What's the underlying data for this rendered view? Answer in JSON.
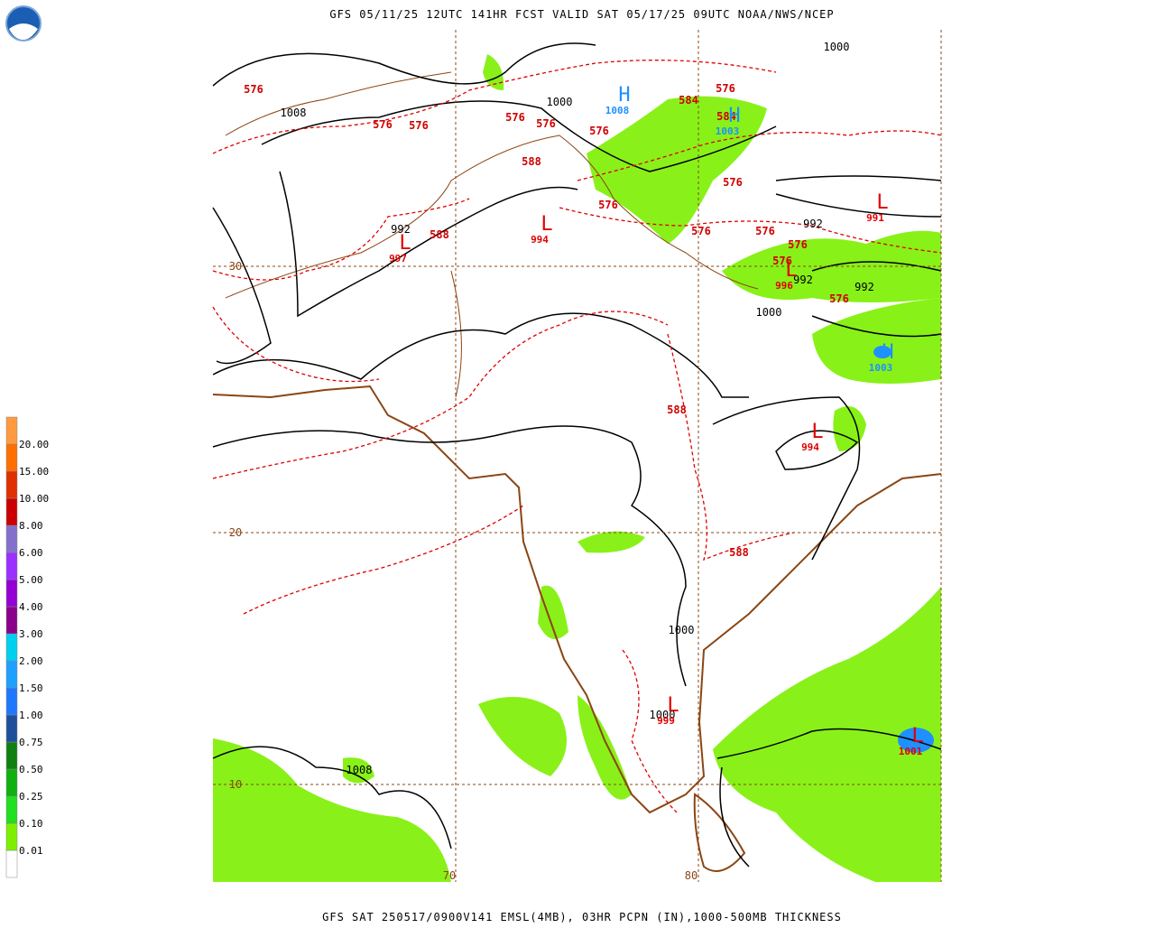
{
  "header": {
    "title": "GFS 05/11/25 12UTC 141HR FCST VALID SAT 05/17/25 09UTC NOAA/NWS/NCEP"
  },
  "footer": {
    "text": "GFS SAT 250517/0900V141 EMSL(4MB), 03HR PCPN (IN),1000-500MB THICKNESS"
  },
  "legend": {
    "labels": [
      "20.00",
      "15.00",
      "10.00",
      "8.00",
      "6.00",
      "5.00",
      "4.00",
      "3.00",
      "2.00",
      "1.50",
      "1.00",
      "0.75",
      "0.50",
      "0.25",
      "0.10",
      "0.01"
    ]
  },
  "grid_labels": {
    "latitude": [
      "30",
      "20",
      "10"
    ],
    "longitude": [
      "70",
      "80"
    ]
  },
  "pressure_labels": [
    "1008",
    "1000",
    "1000",
    "992",
    "992",
    "992",
    "992",
    "1000",
    "1000",
    "1000",
    "1008"
  ],
  "thickness_labels": [
    "576",
    "576",
    "576",
    "576",
    "576",
    "576",
    "576",
    "584",
    "584",
    "576",
    "576",
    "576",
    "576",
    "576",
    "576",
    "576",
    "588",
    "588",
    "588",
    "588"
  ],
  "centers": [
    {
      "symbol": "H",
      "value": "1008"
    },
    {
      "symbol": "H",
      "value": "1003"
    },
    {
      "symbol": "L",
      "value": "994"
    },
    {
      "symbol": "L",
      "value": "991"
    },
    {
      "symbol": "L",
      "value": "997"
    },
    {
      "symbol": "L",
      "value": "994"
    },
    {
      "symbol": "L",
      "value": "999"
    },
    {
      "symbol": "L",
      "value": "1001"
    },
    {
      "symbol": "H",
      "value": "1003"
    },
    {
      "symbol": "L",
      "value": "996"
    }
  ]
}
